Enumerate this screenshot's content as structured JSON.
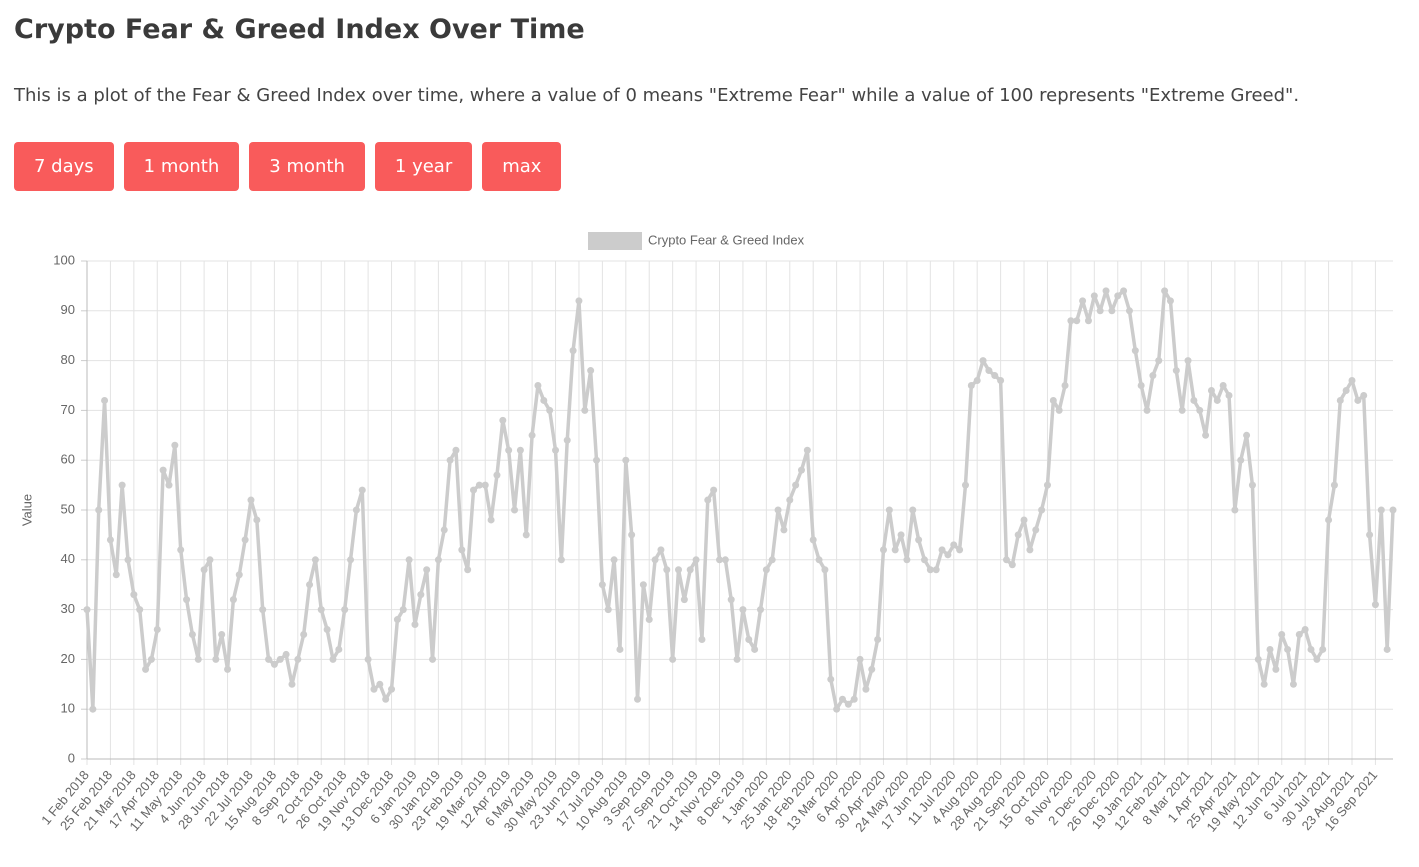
{
  "header": {
    "title": "Crypto Fear & Greed Index Over Time",
    "description": "This is a plot of the Fear & Greed Index over time, where a value of 0 means \"Extreme Fear\" while a value of 100 represents \"Extreme Greed\"."
  },
  "buttons": [
    "7 days",
    "1 month",
    "3 month",
    "1 year",
    "max"
  ],
  "chart_data": {
    "type": "line",
    "y_label": "Value",
    "grid": true,
    "legend": "top",
    "ylim": [
      0,
      100
    ],
    "yticks": [
      0,
      10,
      20,
      30,
      40,
      50,
      60,
      70,
      80,
      90,
      100
    ],
    "categories": [
      "1 Feb 2018",
      null,
      null,
      null,
      "25 Feb 2018",
      null,
      null,
      null,
      "21 Mar 2018",
      null,
      null,
      null,
      "17 Apr 2018",
      null,
      null,
      null,
      "11 May 2018",
      null,
      null,
      null,
      "4 Jun 2018",
      null,
      null,
      null,
      "28 Jun 2018",
      null,
      null,
      null,
      "22 Jul 2018",
      null,
      null,
      null,
      "15 Aug 2018",
      null,
      null,
      null,
      "8 Sep 2018",
      null,
      null,
      null,
      "2 Oct 2018",
      null,
      null,
      null,
      "26 Oct 2018",
      null,
      null,
      null,
      "19 Nov 2018",
      null,
      null,
      null,
      "13 Dec 2018",
      null,
      null,
      null,
      "6 Jan 2019",
      null,
      null,
      null,
      "30 Jan 2019",
      null,
      null,
      null,
      "23 Feb 2019",
      null,
      null,
      null,
      "19 Mar 2019",
      null,
      null,
      null,
      "12 Apr 2019",
      null,
      null,
      null,
      "6 May 2019",
      null,
      null,
      null,
      "30 May 2019",
      null,
      null,
      null,
      "23 Jun 2019",
      null,
      null,
      null,
      "17 Jul 2019",
      null,
      null,
      null,
      "10 Aug 2019",
      null,
      null,
      null,
      "3 Sep 2019",
      null,
      null,
      null,
      "27 Sep 2019",
      null,
      null,
      null,
      "21 Oct 2019",
      null,
      null,
      null,
      "14 Nov 2019",
      null,
      null,
      null,
      "8 Dec 2019",
      null,
      null,
      null,
      "1 Jan 2020",
      null,
      null,
      null,
      "25 Jan 2020",
      null,
      null,
      null,
      "18 Feb 2020",
      null,
      null,
      null,
      "13 Mar 2020",
      null,
      null,
      null,
      "6 Apr 2020",
      null,
      null,
      null,
      "30 Apr 2020",
      null,
      null,
      null,
      "24 May 2020",
      null,
      null,
      null,
      "17 Jun 2020",
      null,
      null,
      null,
      "11 Jul 2020",
      null,
      null,
      null,
      "4 Aug 2020",
      null,
      null,
      null,
      "28 Aug 2020",
      null,
      null,
      null,
      "21 Sep 2020",
      null,
      null,
      null,
      "15 Oct 2020",
      null,
      null,
      null,
      "8 Nov 2020",
      null,
      null,
      null,
      "2 Dec 2020",
      null,
      null,
      null,
      "26 Dec 2020",
      null,
      null,
      null,
      "19 Jan 2021",
      null,
      null,
      null,
      "12 Feb 2021",
      null,
      null,
      null,
      "8 Mar 2021",
      null,
      null,
      null,
      "1 Apr 2021",
      null,
      null,
      null,
      "25 Apr 2021",
      null,
      null,
      null,
      "19 May 2021",
      null,
      null,
      null,
      "12 Jun 2021",
      null,
      null,
      null,
      "6 Jul 2021",
      null,
      null,
      null,
      "30 Jul 2021",
      null,
      null,
      null,
      "23 Aug 2021",
      null,
      null,
      null,
      "16 Sep 2021",
      null,
      null,
      null
    ],
    "series": [
      {
        "name": "Crypto Fear & Greed Index",
        "color": "#cccccc",
        "values": [
          30,
          10,
          50,
          72,
          44,
          37,
          55,
          40,
          33,
          30,
          18,
          20,
          26,
          58,
          55,
          63,
          42,
          32,
          25,
          20,
          38,
          40,
          20,
          25,
          18,
          32,
          37,
          44,
          52,
          48,
          30,
          20,
          19,
          20,
          21,
          15,
          20,
          25,
          35,
          40,
          30,
          26,
          20,
          22,
          30,
          40,
          50,
          54,
          20,
          14,
          15,
          12,
          14,
          28,
          30,
          40,
          27,
          33,
          38,
          20,
          40,
          46,
          60,
          62,
          42,
          38,
          54,
          55,
          55,
          48,
          57,
          68,
          62,
          50,
          62,
          45,
          65,
          75,
          72,
          70,
          62,
          40,
          64,
          82,
          92,
          70,
          78,
          60,
          35,
          30,
          40,
          22,
          60,
          45,
          12,
          35,
          28,
          40,
          42,
          38,
          20,
          38,
          32,
          38,
          40,
          24,
          52,
          54,
          40,
          40,
          32,
          20,
          30,
          24,
          22,
          30,
          38,
          40,
          50,
          46,
          52,
          55,
          58,
          62,
          44,
          40,
          38,
          16,
          10,
          12,
          11,
          12,
          20,
          14,
          18,
          24,
          42,
          50,
          42,
          45,
          40,
          50,
          44,
          40,
          38,
          38,
          42,
          41,
          43,
          42,
          55,
          75,
          76,
          80,
          78,
          77,
          76,
          40,
          39,
          45,
          48,
          42,
          46,
          50,
          55,
          72,
          70,
          75,
          88,
          88,
          92,
          88,
          93,
          90,
          94,
          90,
          93,
          94,
          90,
          82,
          75,
          70,
          77,
          80,
          94,
          92,
          78,
          70,
          80,
          72,
          70,
          65,
          74,
          72,
          75,
          73,
          50,
          60,
          65,
          55,
          20,
          15,
          22,
          18,
          25,
          22,
          15,
          25,
          26,
          22,
          20,
          22,
          48,
          55,
          72,
          74,
          76,
          72,
          73,
          45,
          31,
          50,
          22,
          50
        ]
      }
    ]
  }
}
